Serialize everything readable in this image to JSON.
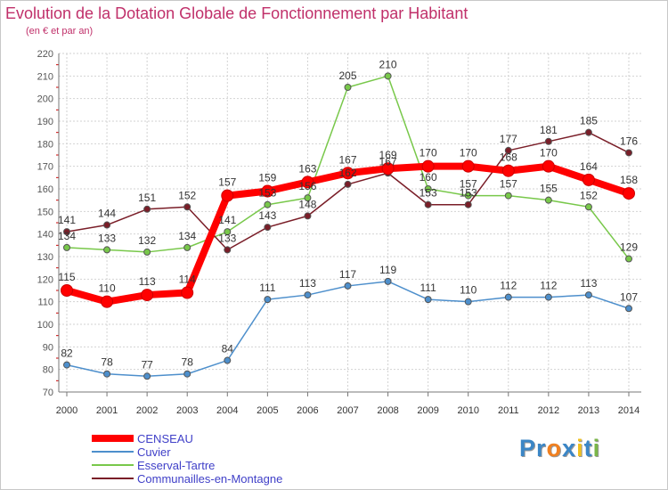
{
  "chart_data": {
    "type": "line",
    "title": "Evolution de la Dotation Globale de Fonctionnement par Habitant",
    "subtitle": "(en € et par an)",
    "xlabel": "",
    "ylabel": "",
    "x": [
      "2000",
      "2001",
      "2002",
      "2003",
      "2004",
      "2005",
      "2006",
      "2007",
      "2008",
      "2009",
      "2010",
      "2011",
      "2012",
      "2013",
      "2014"
    ],
    "ylim": [
      70,
      220
    ],
    "yticks": [
      70,
      80,
      90,
      100,
      110,
      120,
      130,
      140,
      150,
      160,
      170,
      180,
      190,
      200,
      210,
      220
    ],
    "grid": true,
    "legend_position": "bottom-left",
    "series": [
      {
        "name": "CENSEAU",
        "color": "#ff0000",
        "values": [
          115,
          110,
          113,
          114,
          157,
          159,
          163,
          167,
          169,
          170,
          170,
          168,
          170,
          164,
          158
        ]
      },
      {
        "name": "Cuvier",
        "color": "#4d8fcc",
        "values": [
          82,
          78,
          77,
          78,
          84,
          111,
          113,
          117,
          119,
          111,
          110,
          112,
          112,
          113,
          107
        ]
      },
      {
        "name": "Esserval-Tartre",
        "color": "#78c84a",
        "values": [
          134,
          133,
          132,
          134,
          141,
          153,
          156,
          205,
          210,
          160,
          157,
          157,
          155,
          152,
          129
        ]
      },
      {
        "name": "Communailles-en-Montagne",
        "color": "#7a1e28",
        "values": [
          141,
          144,
          151,
          152,
          133,
          143,
          148,
          162,
          167,
          153,
          153,
          177,
          181,
          185,
          176
        ]
      }
    ]
  },
  "brand": {
    "text": "Proxiti",
    "letters": [
      "P",
      "r",
      "o",
      "x",
      "i",
      "t",
      "i"
    ],
    "colors": [
      "#3b86c6",
      "#3b86c6",
      "#f08020",
      "#3b86c6",
      "#f0c020",
      "#3b86c6",
      "#7ab648"
    ]
  }
}
